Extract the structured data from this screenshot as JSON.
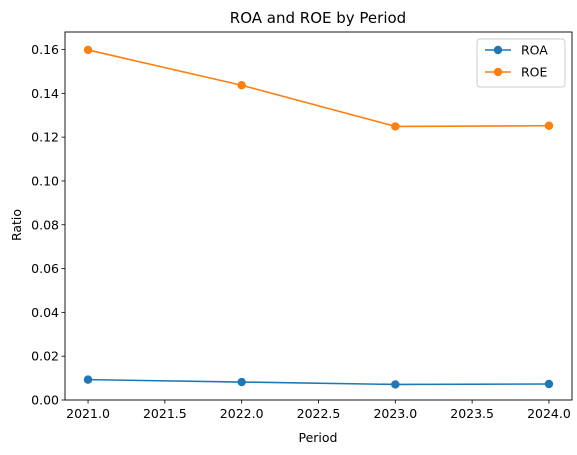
{
  "chart_data": {
    "type": "line",
    "title": "ROA and ROE by Period",
    "xlabel": "Period",
    "ylabel": "Ratio",
    "x": [
      2021,
      2022,
      2023,
      2024
    ],
    "xlim": [
      2020.85,
      2024.15
    ],
    "ylim": [
      0.0,
      0.168
    ],
    "xticks": [
      2021.0,
      2021.5,
      2022.0,
      2022.5,
      2023.0,
      2023.5,
      2024.0
    ],
    "xtick_labels": [
      "2021.0",
      "2021.5",
      "2022.0",
      "2022.5",
      "2023.0",
      "2023.5",
      "2024.0"
    ],
    "yticks": [
      0.0,
      0.02,
      0.04,
      0.06,
      0.08,
      0.1,
      0.12,
      0.14,
      0.16
    ],
    "ytick_labels": [
      "0.00",
      "0.02",
      "0.04",
      "0.06",
      "0.08",
      "0.10",
      "0.12",
      "0.14",
      "0.16"
    ],
    "grid": false,
    "legend_position": "top-right",
    "series": [
      {
        "name": "ROA",
        "color": "#1f77b4",
        "marker": "circle",
        "values": [
          0.0093,
          0.0082,
          0.0071,
          0.0073
        ]
      },
      {
        "name": "ROE",
        "color": "#ff7f0e",
        "marker": "circle",
        "values": [
          0.1598,
          0.1437,
          0.1249,
          0.1252
        ]
      }
    ]
  }
}
